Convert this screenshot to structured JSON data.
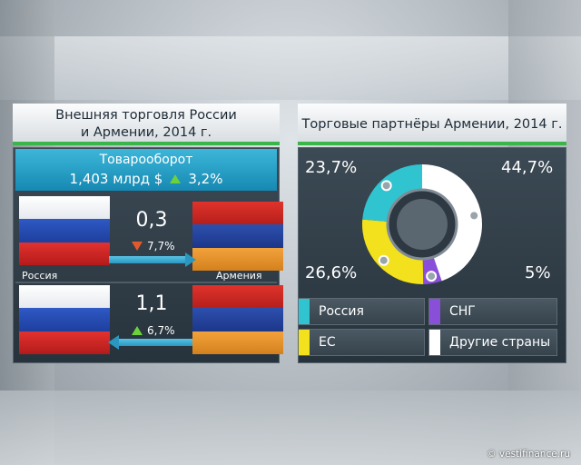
{
  "left_panel": {
    "title_line1": "Внешняя торговля России",
    "title_line2": "и Армении, 2014 г.",
    "turnover_label": "Товарооборот",
    "turnover_value": "1,403 млрд $",
    "turnover_change": "3,2%",
    "flows": [
      {
        "value": "0,3",
        "change": "7,7%",
        "direction": "down",
        "from": "Россия",
        "to": "Армения"
      },
      {
        "value": "1,1",
        "change": "6,7%",
        "direction": "up"
      }
    ],
    "label_russia": "Россия",
    "label_armenia": "Армения"
  },
  "right_panel": {
    "title": "Торговые партнёры Армении, 2014 г."
  },
  "chart_data": {
    "type": "pie",
    "title": "Торговые партнёры Армении, 2014 г.",
    "slices": [
      {
        "label": "Другие страны",
        "value": 44.7,
        "display": "44,7%",
        "color": "#ffffff"
      },
      {
        "label": "СНГ",
        "value": 5.0,
        "display": "5%",
        "color": "#8a4fd8"
      },
      {
        "label": "ЕС",
        "value": 26.6,
        "display": "26,6%",
        "color": "#f2e11c"
      },
      {
        "label": "Россия",
        "value": 23.7,
        "display": "23,7%",
        "color": "#2fc4d0"
      }
    ],
    "legend": [
      "Россия",
      "СНГ",
      "ЕС",
      "Другие страны"
    ]
  },
  "colors": {
    "accent_green": "#39b54a",
    "turnover_blue": "#1f9fc8",
    "up_arrow": "#6cd13d",
    "down_arrow": "#e25a2b"
  },
  "watermark": "© vestifinance.ru"
}
